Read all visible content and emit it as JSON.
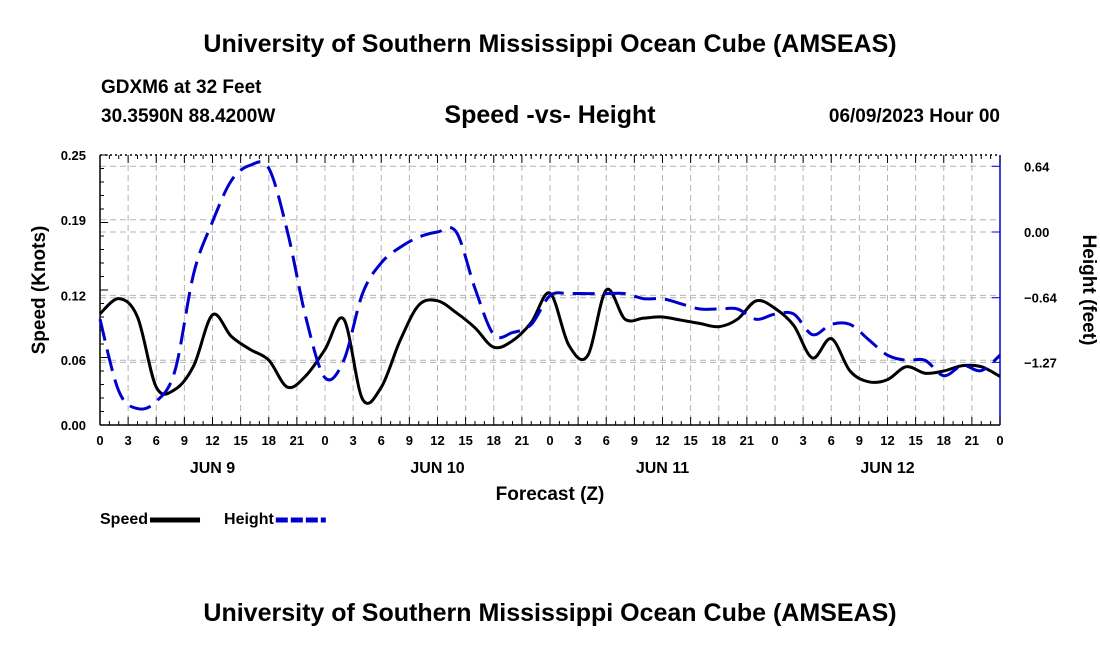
{
  "header": {
    "title": "University of Southern Mississippi Ocean Cube (AMSEAS)",
    "station": "GDXM6 at 32 Feet",
    "coordinates": "30.3590N  88.4200W",
    "subtitle": "Speed -vs- Height",
    "date": "06/09/2023 Hour 00"
  },
  "footer": {
    "title": "University of Southern Mississippi Ocean Cube (AMSEAS)"
  },
  "chart_data": {
    "type": "line",
    "title": "Speed -vs- Height",
    "xlabel": "Forecast (Z)",
    "ylabel_left": "Speed (Knots)",
    "ylabel_right": "Height (feet)",
    "xlim": [
      0,
      96
    ],
    "ylim_left": [
      0,
      0.25
    ],
    "ylim_right": [
      -1.88,
      0.75
    ],
    "x_ticks": [
      0,
      3,
      6,
      9,
      12,
      15,
      18,
      21,
      24,
      27,
      30,
      33,
      36,
      39,
      42,
      45,
      48,
      51,
      54,
      57,
      60,
      63,
      66,
      69,
      72,
      75,
      78,
      81,
      84,
      87,
      90,
      93,
      96
    ],
    "x_tick_labels": [
      "0",
      "3",
      "6",
      "9",
      "12",
      "15",
      "18",
      "21",
      "0",
      "3",
      "6",
      "9",
      "12",
      "15",
      "18",
      "21",
      "0",
      "3",
      "6",
      "9",
      "12",
      "15",
      "18",
      "21",
      "0",
      "3",
      "6",
      "9",
      "12",
      "15",
      "18",
      "21",
      "0"
    ],
    "day_labels": [
      {
        "x": 12,
        "label": "JUN 9"
      },
      {
        "x": 36,
        "label": "JUN 10"
      },
      {
        "x": 60,
        "label": "JUN 11"
      },
      {
        "x": 84,
        "label": "JUN 12"
      }
    ],
    "y_left_ticks": [
      0.0,
      0.06,
      0.12,
      0.19,
      0.25
    ],
    "y_left_tick_labels": [
      "0.00",
      "0.06",
      "0.12",
      "0.19",
      "0.25"
    ],
    "y_right_ticks": [
      0.64,
      0.0,
      -0.64,
      -1.27
    ],
    "y_right_tick_labels": [
      "0.64",
      "0.00",
      "−0.64",
      "−1.27"
    ],
    "grid": true,
    "legend": "bottom-left",
    "series": [
      {
        "name": "Speed",
        "axis": "left",
        "color": "#000000",
        "style": "solid",
        "x": [
          0,
          2,
          4,
          6,
          8,
          10,
          12,
          14,
          16,
          18,
          20,
          22,
          24,
          26,
          28,
          30,
          32,
          34,
          36,
          38,
          40,
          42,
          44,
          46,
          48,
          50,
          52,
          54,
          56,
          58,
          60,
          62,
          64,
          66,
          68,
          70,
          72,
          74,
          76,
          78,
          80,
          82,
          84,
          86,
          88,
          90,
          92,
          94,
          96
        ],
        "values": [
          0.103,
          0.117,
          0.1,
          0.035,
          0.033,
          0.055,
          0.102,
          0.082,
          0.07,
          0.06,
          0.035,
          0.046,
          0.07,
          0.098,
          0.024,
          0.035,
          0.078,
          0.111,
          0.115,
          0.104,
          0.09,
          0.072,
          0.078,
          0.095,
          0.122,
          0.074,
          0.064,
          0.125,
          0.098,
          0.099,
          0.1,
          0.097,
          0.094,
          0.091,
          0.098,
          0.115,
          0.108,
          0.092,
          0.062,
          0.08,
          0.05,
          0.04,
          0.042,
          0.054,
          0.048,
          0.05,
          0.055,
          0.054,
          0.045
        ]
      },
      {
        "name": "Height",
        "axis": "right",
        "color": "#0000cc",
        "style": "dashed",
        "x": [
          0,
          2,
          4,
          6,
          8,
          10,
          12,
          14,
          16,
          18,
          20,
          22,
          24,
          26,
          28,
          30,
          32,
          34,
          36,
          38,
          40,
          42,
          44,
          46,
          48,
          50,
          52,
          54,
          56,
          58,
          60,
          62,
          64,
          66,
          68,
          70,
          72,
          74,
          76,
          78,
          80,
          82,
          84,
          86,
          88,
          90,
          92,
          94,
          96
        ],
        "values": [
          -0.85,
          -1.55,
          -1.72,
          -1.65,
          -1.35,
          -0.4,
          0.1,
          0.5,
          0.65,
          0.62,
          0.0,
          -0.85,
          -1.42,
          -1.25,
          -0.6,
          -0.3,
          -0.15,
          -0.05,
          0.0,
          0.0,
          -0.55,
          -1.0,
          -0.98,
          -0.9,
          -0.62,
          -0.6,
          -0.6,
          -0.6,
          -0.6,
          -0.65,
          -0.65,
          -0.7,
          -0.75,
          -0.75,
          -0.75,
          -0.85,
          -0.8,
          -0.8,
          -1.0,
          -0.9,
          -0.9,
          -1.05,
          -1.2,
          -1.25,
          -1.25,
          -1.4,
          -1.3,
          -1.35,
          -1.2
        ]
      }
    ]
  }
}
